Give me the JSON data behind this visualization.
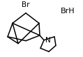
{
  "background_color": "#ffffff",
  "line_color": "#000000",
  "line_width": 1.1,
  "text_color": "#000000",
  "br_label": "Br",
  "brh_label": "BrH",
  "n_label": "N",
  "figsize": [
    1.19,
    0.82
  ],
  "dpi": 100,
  "font_size": 7.5,
  "brh_font_size": 8.0
}
